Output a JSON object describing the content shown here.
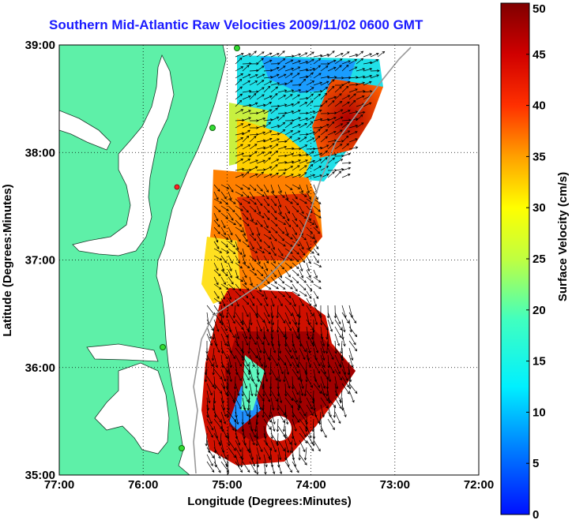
{
  "title": "Southern Mid-Atlantic Raw Velocities 2009/11/02 0600 GMT",
  "map": {
    "x_axis": {
      "label": "Longitude (Degrees:Minutes)",
      "range": [
        -77,
        -72
      ],
      "ticks": [
        {
          "value": -77,
          "label": "77:00"
        },
        {
          "value": -76,
          "label": "76:00"
        },
        {
          "value": -75,
          "label": "75:00"
        },
        {
          "value": -74,
          "label": "74:00"
        },
        {
          "value": -73,
          "label": "73:00"
        },
        {
          "value": -72,
          "label": "72:00"
        }
      ]
    },
    "y_axis": {
      "label": "Latitude (Degrees:Minutes)",
      "range": [
        35,
        39
      ],
      "ticks": [
        {
          "value": 35,
          "label": "35:00"
        },
        {
          "value": 36,
          "label": "36:00"
        },
        {
          "value": 37,
          "label": "37:00"
        },
        {
          "value": 38,
          "label": "38:00"
        },
        {
          "value": 39,
          "label": "39:00"
        }
      ]
    },
    "grid": "dotted",
    "land_color": "#5ef0a8",
    "ocean_color": "#ffffff",
    "arrow_color": "#000000",
    "station_color": "#33dd33"
  },
  "colorbar": {
    "label": "Surface Velocity (cm/s)",
    "colormap": "jet",
    "range": [
      0,
      50
    ],
    "ticks": [
      {
        "value": 0,
        "label": "0"
      },
      {
        "value": 5,
        "label": "5"
      },
      {
        "value": 10,
        "label": "10"
      },
      {
        "value": 15,
        "label": "15"
      },
      {
        "value": 20,
        "label": "20"
      },
      {
        "value": 25,
        "label": "25"
      },
      {
        "value": 30,
        "label": "30"
      },
      {
        "value": 35,
        "label": "35"
      },
      {
        "value": 40,
        "label": "40"
      },
      {
        "value": 45,
        "label": "45"
      },
      {
        "value": 50,
        "label": "50"
      }
    ]
  }
}
